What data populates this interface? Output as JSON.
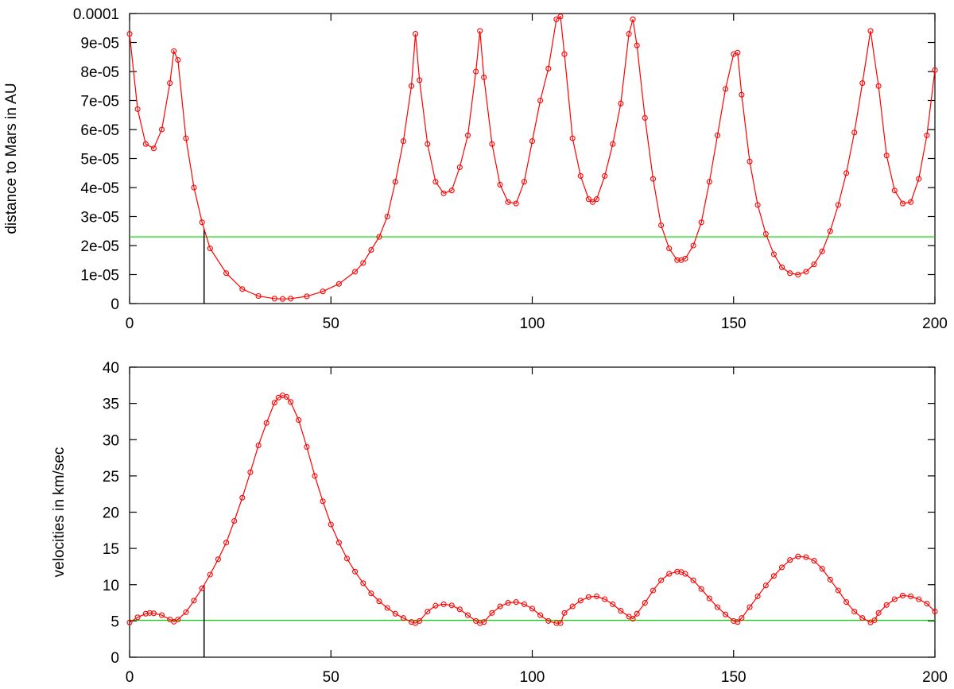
{
  "chart_data": [
    {
      "type": "line",
      "title": "",
      "xlabel": "",
      "ylabel": "distance to Mars in AU",
      "xlim": [
        0,
        200
      ],
      "ylim": [
        0,
        0.0001
      ],
      "xticks": [
        "0",
        "50",
        "100",
        "150",
        "200"
      ],
      "yticks": [
        "0",
        "1e-05",
        "2e-05",
        "3e-05",
        "4e-05",
        "5e-05",
        "6e-05",
        "7e-05",
        "8e-05",
        "9e-05",
        "0.0001"
      ],
      "grid": false,
      "threshold": 2.3e-05,
      "marker_x": 18.5,
      "colors": {
        "series": "#ff0000",
        "threshold": "#00d800",
        "marker": "#000000"
      },
      "series": [
        {
          "marker": "circle",
          "x": [
            0,
            2,
            4,
            6,
            8,
            10,
            11,
            12,
            14,
            16,
            18,
            20,
            24,
            28,
            32,
            36,
            38,
            40,
            44,
            48,
            52,
            56,
            58,
            60,
            62,
            64,
            66,
            68,
            70,
            71,
            72,
            74,
            76,
            78,
            80,
            82,
            84,
            86,
            87,
            88,
            90,
            92,
            94,
            96,
            98,
            100,
            102,
            104,
            106,
            107,
            108,
            110,
            112,
            114,
            115,
            116,
            118,
            120,
            122,
            124,
            125,
            126,
            128,
            130,
            132,
            134,
            136,
            137,
            138,
            140,
            142,
            144,
            146,
            148,
            150,
            151,
            152,
            154,
            156,
            158,
            160,
            162,
            164,
            166,
            168,
            170,
            172,
            174,
            176,
            178,
            180,
            182,
            184,
            186,
            188,
            190,
            192,
            194,
            196,
            198,
            200
          ],
          "y": [
            9.3e-05,
            6.7e-05,
            5.5e-05,
            5.35e-05,
            6e-05,
            7.6e-05,
            8.7e-05,
            8.4e-05,
            5.7e-05,
            4e-05,
            2.8e-05,
            1.9e-05,
            1.05e-05,
            5e-06,
            2.6e-06,
            1.7e-06,
            1.6e-06,
            1.7e-06,
            2.5e-06,
            4.2e-06,
            6.8e-06,
            1.1e-05,
            1.4e-05,
            1.85e-05,
            2.3e-05,
            3e-05,
            4.2e-05,
            5.6e-05,
            7.5e-05,
            9.3e-05,
            7.7e-05,
            5.5e-05,
            4.2e-05,
            3.8e-05,
            3.9e-05,
            4.7e-05,
            5.8e-05,
            8e-05,
            9.4e-05,
            7.8e-05,
            5.5e-05,
            4.1e-05,
            3.5e-05,
            3.45e-05,
            4.2e-05,
            5.6e-05,
            7e-05,
            8.1e-05,
            9.8e-05,
            9.9e-05,
            8.6e-05,
            5.7e-05,
            4.4e-05,
            3.6e-05,
            3.5e-05,
            3.6e-05,
            4.4e-05,
            5.5e-05,
            6.9e-05,
            9.3e-05,
            9.8e-05,
            8.9e-05,
            6.4e-05,
            4.3e-05,
            2.7e-05,
            1.9e-05,
            1.5e-05,
            1.5e-05,
            1.55e-05,
            2e-05,
            2.8e-05,
            4.2e-05,
            5.8e-05,
            7.4e-05,
            8.6e-05,
            8.65e-05,
            7.2e-05,
            4.9e-05,
            3.4e-05,
            2.4e-05,
            1.7e-05,
            1.25e-05,
            1.05e-05,
            1e-05,
            1.1e-05,
            1.35e-05,
            1.8e-05,
            2.5e-05,
            3.4e-05,
            4.5e-05,
            5.9e-05,
            7.6e-05,
            9.4e-05,
            7.5e-05,
            5.1e-05,
            3.9e-05,
            3.45e-05,
            3.5e-05,
            4.3e-05,
            5.8e-05,
            8.05e-05
          ]
        }
      ]
    },
    {
      "type": "line",
      "title": "",
      "xlabel": "",
      "ylabel": "velocities in km/sec",
      "xlim": [
        0,
        200
      ],
      "ylim": [
        0,
        40
      ],
      "xticks": [
        "0",
        "50",
        "100",
        "150",
        "200"
      ],
      "yticks": [
        "0",
        "5",
        "10",
        "15",
        "20",
        "25",
        "30",
        "35",
        "40"
      ],
      "grid": false,
      "threshold": 5.1,
      "marker_x": 18.5,
      "colors": {
        "series": "#ff0000",
        "threshold": "#00d800",
        "marker": "#000000"
      },
      "series": [
        {
          "marker": "circle",
          "x": [
            0,
            2,
            4,
            5,
            6,
            8,
            10,
            11,
            12,
            14,
            16,
            18,
            20,
            22,
            24,
            26,
            28,
            30,
            32,
            34,
            36,
            37,
            38,
            39,
            40,
            42,
            44,
            46,
            48,
            50,
            52,
            54,
            56,
            58,
            60,
            62,
            64,
            66,
            68,
            70,
            71,
            72,
            74,
            76,
            78,
            80,
            82,
            84,
            86,
            87,
            88,
            90,
            92,
            94,
            96,
            98,
            100,
            102,
            104,
            106,
            107,
            108,
            110,
            112,
            114,
            116,
            118,
            120,
            122,
            124,
            125,
            126,
            128,
            130,
            132,
            134,
            136,
            137,
            138,
            140,
            142,
            144,
            146,
            148,
            150,
            151,
            152,
            154,
            156,
            158,
            160,
            162,
            164,
            166,
            168,
            170,
            172,
            174,
            176,
            178,
            180,
            182,
            184,
            185,
            186,
            188,
            190,
            192,
            194,
            196,
            198,
            200
          ],
          "y": [
            4.8,
            5.5,
            6.0,
            6.1,
            6.05,
            5.8,
            5.2,
            4.9,
            5.2,
            6.2,
            7.8,
            9.5,
            11.4,
            13.5,
            15.8,
            18.8,
            22.0,
            25.5,
            29.2,
            32.3,
            35.1,
            35.8,
            36.1,
            35.9,
            35.2,
            32.7,
            29.0,
            25.0,
            21.5,
            18.3,
            15.8,
            13.6,
            11.8,
            10.2,
            8.8,
            7.7,
            6.8,
            6.0,
            5.4,
            4.85,
            4.7,
            5.0,
            6.3,
            7.1,
            7.3,
            7.15,
            6.6,
            5.8,
            5.0,
            4.7,
            4.85,
            6.1,
            7.0,
            7.5,
            7.6,
            7.3,
            6.7,
            5.8,
            5.0,
            4.7,
            4.7,
            6.1,
            7.0,
            7.8,
            8.3,
            8.4,
            8.0,
            7.3,
            6.4,
            5.6,
            5.3,
            6.0,
            7.5,
            9.2,
            10.6,
            11.5,
            11.8,
            11.75,
            11.5,
            10.6,
            9.4,
            8.1,
            6.9,
            5.9,
            5.0,
            4.85,
            5.4,
            6.9,
            8.4,
            9.9,
            11.2,
            12.4,
            13.4,
            13.9,
            13.8,
            13.3,
            12.2,
            10.7,
            9.2,
            7.6,
            6.3,
            5.4,
            4.8,
            5.1,
            6.1,
            7.2,
            8.0,
            8.5,
            8.4,
            8.0,
            7.4,
            6.3
          ]
        }
      ]
    }
  ]
}
